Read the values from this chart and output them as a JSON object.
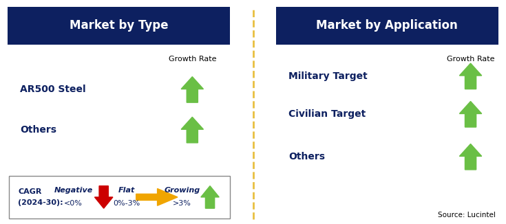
{
  "title_left": "Market by Type",
  "title_right": "Market by Application",
  "header_bg": "#0d2060",
  "header_fg": "#ffffff",
  "body_bg": "#ffffff",
  "navy_text": "#0d2060",
  "growth_rate_label": "Growth Rate",
  "left_items": [
    "AR500 Steel",
    "Others"
  ],
  "right_items": [
    "Military Target",
    "Civilian Target",
    "Others"
  ],
  "green_arrow_color": "#6abf45",
  "red_arrow_color": "#cc0000",
  "yellow_arrow_color": "#f0a500",
  "divider_color": "#e8c040",
  "legend_border": "#888888",
  "cagr_line1": "CAGR",
  "cagr_line2": "(2024-30):",
  "negative_label": "Negative",
  "negative_sub": "<0%",
  "flat_label": "Flat",
  "flat_sub": "0%-3%",
  "growing_label": "Growing",
  "growing_sub": ">3%",
  "source_text": "Source: Lucintel",
  "fig_width": 7.35,
  "fig_height": 3.26,
  "dpi": 100
}
